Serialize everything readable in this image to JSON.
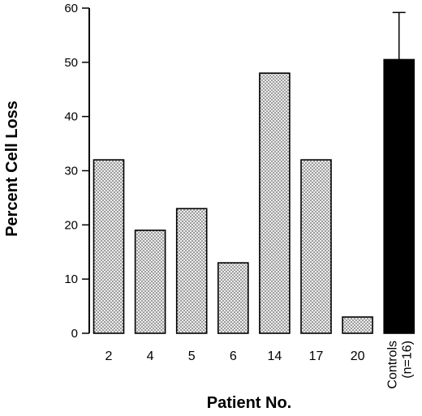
{
  "chart_data": {
    "type": "bar",
    "title": "",
    "xlabel": "Patient No.",
    "ylabel": "Percent Cell Loss",
    "ylim": [
      0,
      60
    ],
    "yticks": [
      0,
      10,
      20,
      30,
      40,
      50,
      60
    ],
    "grid": false,
    "legend": "none",
    "categories": [
      "2",
      "4",
      "5",
      "6",
      "14",
      "17",
      "20",
      "Controls (n=16)"
    ],
    "category_label_lines": [
      [
        "2"
      ],
      [
        "4"
      ],
      [
        "5"
      ],
      [
        "6"
      ],
      [
        "14"
      ],
      [
        "17"
      ],
      [
        "20"
      ],
      [
        "Controls",
        "(n=16)"
      ]
    ],
    "values": [
      32,
      19,
      23,
      13,
      48,
      32,
      3,
      50.5
    ],
    "fill_style": [
      "dotted",
      "dotted",
      "dotted",
      "dotted",
      "dotted",
      "dotted",
      "dotted",
      "solid"
    ],
    "error_bars": [
      null,
      null,
      null,
      null,
      null,
      null,
      null,
      8.7
    ],
    "colors": {
      "dotted_fill": "#ececec",
      "dot": "#333333",
      "solid_fill": "#000000"
    }
  }
}
